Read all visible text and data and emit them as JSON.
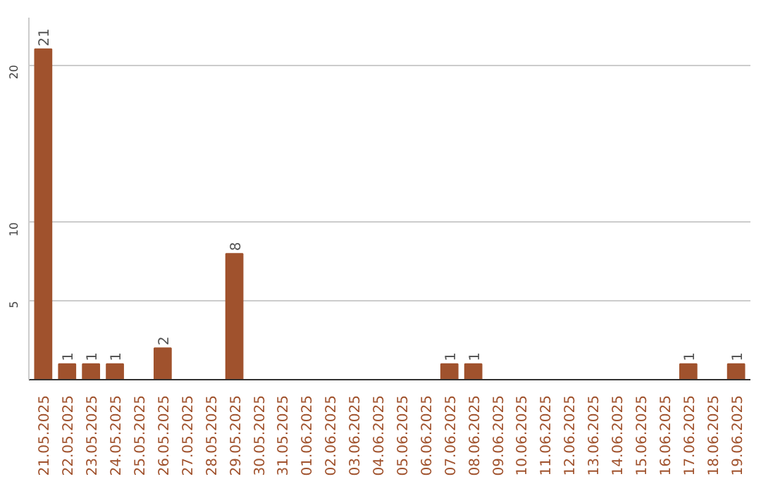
{
  "chart_data": {
    "type": "bar",
    "categories": [
      "21.05.2025",
      "22.05.2025",
      "23.05.2025",
      "24.05.2025",
      "25.05.2025",
      "26.05.2025",
      "27.05.2025",
      "28.05.2025",
      "29.05.2025",
      "30.05.2025",
      "31.05.2025",
      "01.06.2025",
      "02.06.2025",
      "03.06.2025",
      "04.06.2025",
      "05.06.2025",
      "06.06.2025",
      "07.06.2025",
      "08.06.2025",
      "09.06.2025",
      "10.06.2025",
      "11.06.2025",
      "12.06.2025",
      "13.06.2025",
      "14.06.2025",
      "15.06.2025",
      "16.06.2025",
      "17.06.2025",
      "18.06.2025",
      "19.06.2025"
    ],
    "values": [
      21,
      1,
      1,
      1,
      0,
      2,
      0,
      0,
      8,
      0,
      0,
      0,
      0,
      0,
      0,
      0,
      0,
      1,
      1,
      0,
      0,
      0,
      0,
      0,
      0,
      0,
      0,
      1,
      0,
      1
    ],
    "value_labels": [
      "21",
      "1",
      "1",
      "1",
      null,
      "2",
      null,
      null,
      "8",
      null,
      null,
      null,
      null,
      null,
      null,
      null,
      null,
      "1",
      "1",
      null,
      null,
      null,
      null,
      null,
      null,
      null,
      null,
      "1",
      null,
      "1"
    ],
    "color": "#a0522d",
    "ylim": [
      0,
      23
    ],
    "yticks": [
      5,
      10,
      20
    ],
    "grid": "y"
  }
}
